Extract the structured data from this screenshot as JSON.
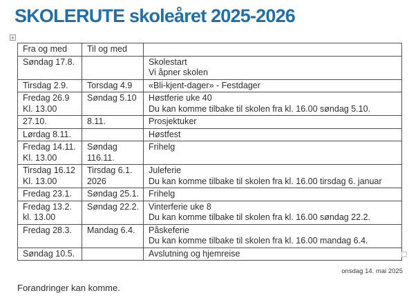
{
  "page": {
    "title": "SKOLERUTE skoleåret 2025-2026",
    "title_color": "#1e6fad",
    "date_stamp": "onsdag 14. mai 2025",
    "footnote": "Forandringer kan komme."
  },
  "icons": {
    "table_move_glyph": "+",
    "table_move_name": "table-move-handle",
    "table_resize_name": "table-resize-handle"
  },
  "table": {
    "headers": [
      "Fra og med",
      "Til og med",
      ""
    ],
    "rows": [
      {
        "from": "Søndag 17.8.",
        "to": "",
        "desc": "Skolestart\nVi åpner skolen"
      },
      {
        "from": "Tirsdag 2.9.",
        "to": "Torsdag 4.9",
        "desc": "«Bli-kjent-dager» - Festdager"
      },
      {
        "from": "Fredag 26.9\nKl. 13.00",
        "to": "Søndag 5.10",
        "desc": "Høstferie uke 40\nDu kan komme tilbake til skolen fra kl. 16.00 søndag 5.10."
      },
      {
        "from": "27.10.",
        "to": "8.11.",
        "desc": "Prosjektuker"
      },
      {
        "from": "Lørdag 8.11.",
        "to": "",
        "desc": "Høstfest"
      },
      {
        "from": "Fredag 14.11.\nKl. 13.00",
        "to": "Søndag\n116.11.",
        "desc": "Frihelg"
      },
      {
        "from": "Tirsdag 16.12\nKl. 13.00",
        "to": "Tirsdag 6.1.\n2026",
        "desc": "Juleferie\nDu kan komme tilbake til skolen fra kl. 16.00 tirsdag 6. januar"
      },
      {
        "from": "Fredag 23.1.",
        "to": "Søndag 25.1.",
        "desc": "Frihelg"
      },
      {
        "from": "Fredag 13.2.\nkl. 13.00",
        "to": "Søndag 22.2.",
        "desc": "Vinterferie uke 8\nDu kan komme tilbake til skolen fra kl. 16.00 søndag 22.2."
      },
      {
        "from": "Fredag 28.3.",
        "to": "Mandag 6.4.",
        "desc": "Påskeferie\nDu kan komme tilbake til skolen fra kl. 16.00 mandag 6.4."
      },
      {
        "from": "Søndag 10.5.",
        "to": "",
        "desc": "Avslutning og hjemreise"
      }
    ]
  }
}
